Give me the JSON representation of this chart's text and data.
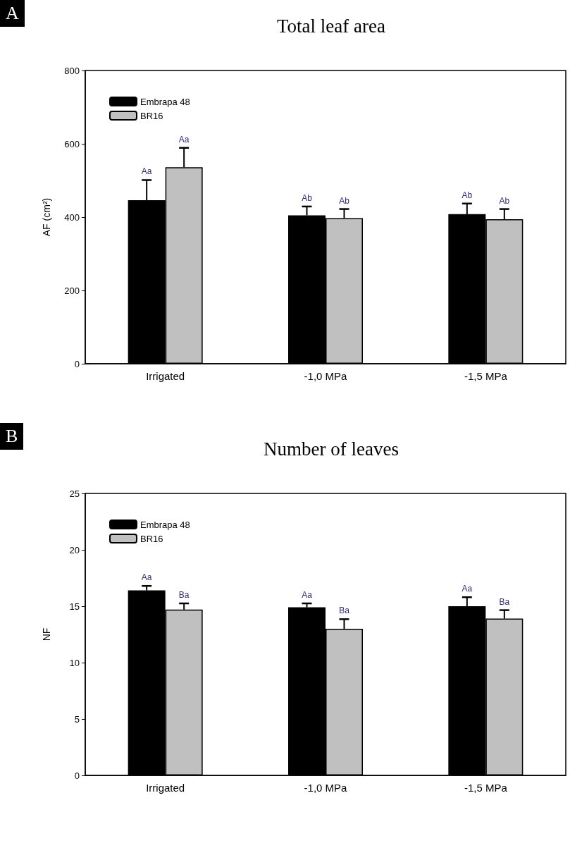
{
  "chart_data": [
    {
      "type": "bar",
      "title": "Total leaf area",
      "ylabel": "AF (cm²)",
      "annotations": [
        "A"
      ],
      "categories": [
        "Irrigated",
        "-1,0 MPa",
        "-1,5 MPa"
      ],
      "series": [
        {
          "name": "Embrapa 48",
          "color": "#000000",
          "values": [
            446,
            405,
            408
          ],
          "errors": [
            55,
            24,
            29
          ],
          "value_labels": [
            "Aa",
            "Ab",
            "Ab"
          ]
        },
        {
          "name": "BR16",
          "color": "#c0c0c0",
          "values": [
            536,
            397,
            394
          ],
          "errors": [
            53,
            25,
            28
          ],
          "value_labels": [
            "Aa",
            "Ab",
            "Ab"
          ]
        }
      ],
      "ylim": [
        0,
        800
      ],
      "yticks": [
        0,
        200,
        400,
        600,
        800
      ],
      "legend": "top left",
      "grid": false
    },
    {
      "type": "bar",
      "title": "Number of leaves",
      "ylabel": "NF",
      "annotations": [
        "B"
      ],
      "categories": [
        "Irrigated",
        "-1,0 MPa",
        "-1,5 MPa"
      ],
      "series": [
        {
          "name": "Embrapa 48",
          "color": "#000000",
          "values": [
            16.4,
            14.9,
            15.0
          ],
          "errors": [
            0.4,
            0.35,
            0.8
          ],
          "value_labels": [
            "Aa",
            "Aa",
            "Aa"
          ]
        },
        {
          "name": "BR16",
          "color": "#c0c0c0",
          "values": [
            14.7,
            13.0,
            13.9
          ],
          "errors": [
            0.55,
            0.85,
            0.75
          ],
          "value_labels": [
            "Ba",
            "Ba",
            "Ba"
          ]
        }
      ],
      "ylim": [
        0,
        25
      ],
      "yticks": [
        0,
        5,
        10,
        15,
        20,
        25
      ],
      "legend": "top left",
      "grid": false
    }
  ]
}
